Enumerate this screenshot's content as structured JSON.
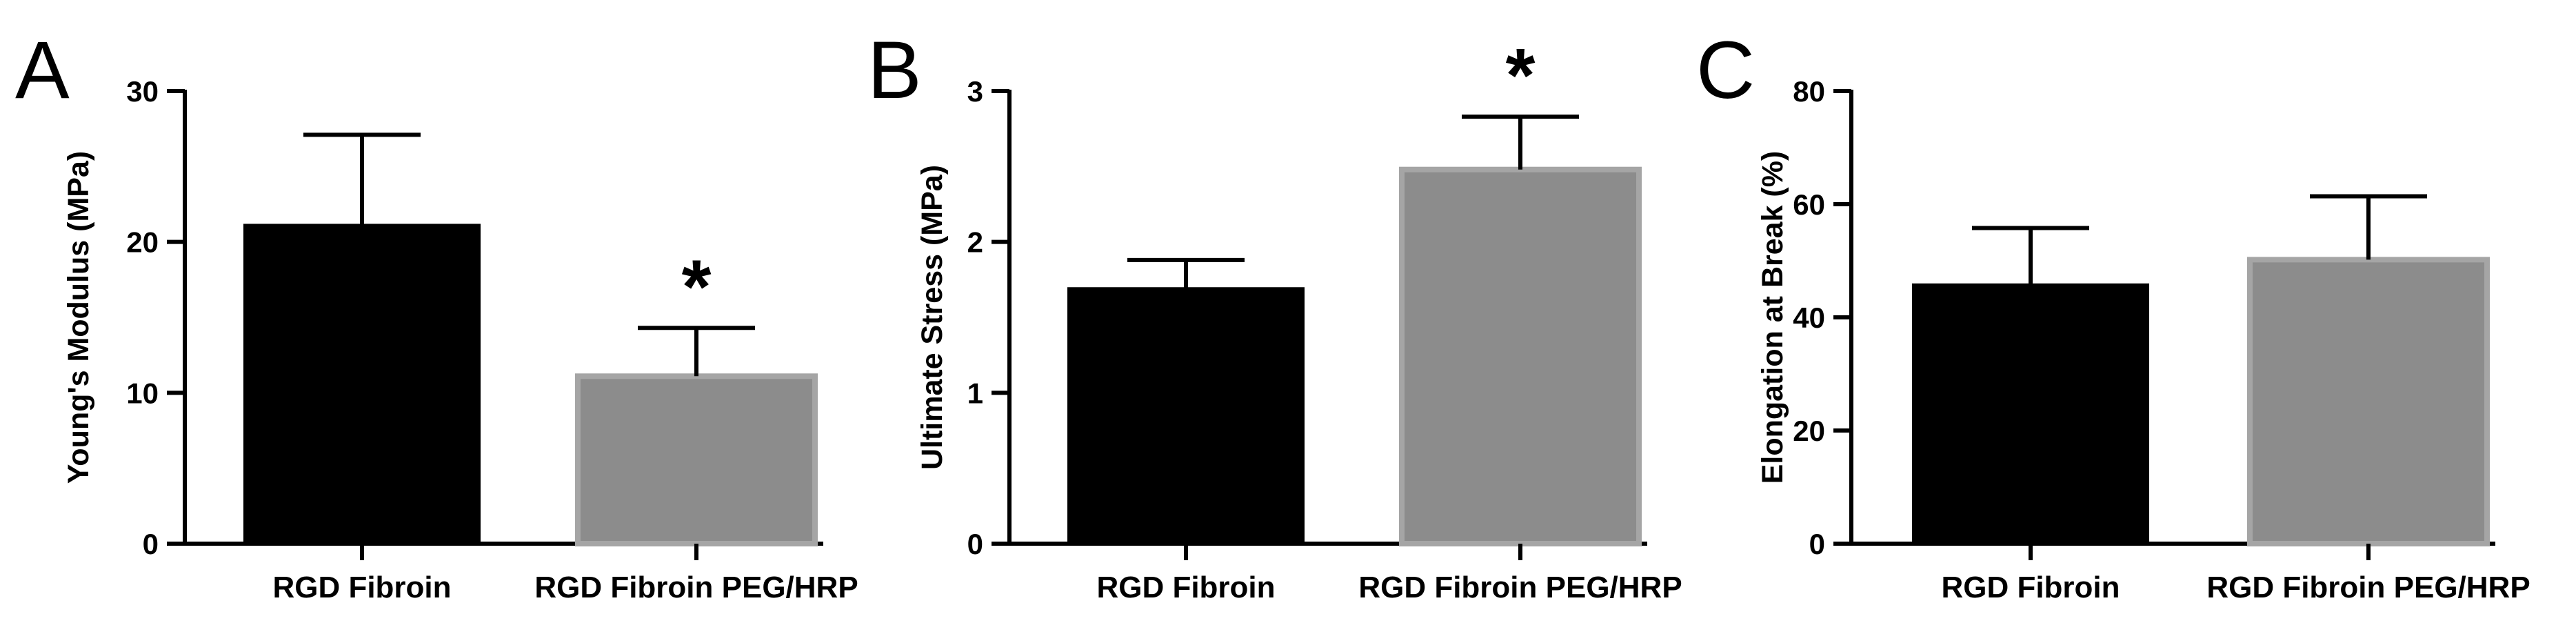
{
  "colors": {
    "bar_dark": "#000000",
    "bar_gray": "#8c8c8c",
    "bar_gray_edge": "#a5a5a5",
    "axis": "#000000"
  },
  "chart_data": [
    {
      "type": "bar",
      "panel": "A",
      "categories": [
        "RGD Fibroin",
        "RGD Fibroin PEG/HRP"
      ],
      "values": [
        21.2,
        11.1
      ],
      "error": [
        5.9,
        3.2
      ],
      "significance": [
        "",
        "*"
      ],
      "ylabel": "Young's Modulus (MPa)",
      "ylim": [
        0,
        30
      ],
      "yticks": [
        0,
        10,
        20,
        30
      ],
      "grid": false
    },
    {
      "type": "bar",
      "panel": "B",
      "categories": [
        "RGD Fibroin",
        "RGD Fibroin PEG/HRP"
      ],
      "values": [
        1.7,
        2.48
      ],
      "error": [
        0.18,
        0.35
      ],
      "significance": [
        "",
        "*"
      ],
      "ylabel": "Ultimate Stress (MPa)",
      "ylim": [
        0,
        3
      ],
      "yticks": [
        0,
        1,
        2,
        3
      ],
      "grid": false
    },
    {
      "type": "bar",
      "panel": "C",
      "categories": [
        "RGD Fibroin",
        "RGD Fibroin PEG/HRP"
      ],
      "values": [
        46,
        50.2
      ],
      "error": [
        9.8,
        11.2
      ],
      "significance": [
        "",
        ""
      ],
      "ylabel": "Elongation at Break (%)",
      "ylim": [
        0,
        80
      ],
      "yticks": [
        0,
        20,
        40,
        60,
        80
      ],
      "grid": false
    }
  ]
}
